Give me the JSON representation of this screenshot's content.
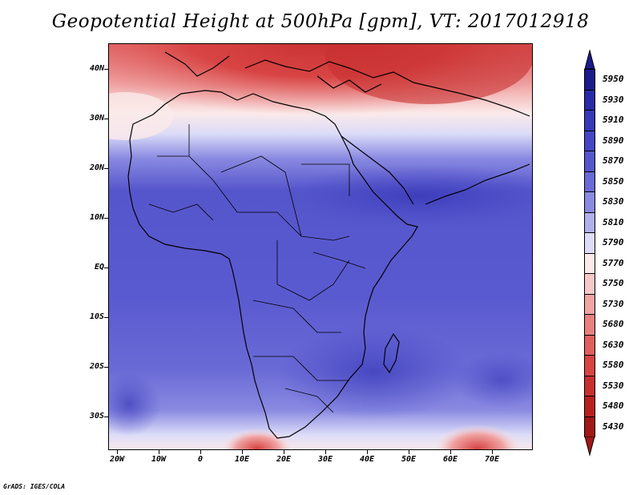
{
  "title": "Geopotential Height at 500hPa [gpm], VT: 2017012918",
  "footer": "GrADS: IGES/COLA",
  "axes": {
    "y_ticks": [
      "40N",
      "30N",
      "20N",
      "10N",
      "EQ",
      "10S",
      "20S",
      "30S"
    ],
    "x_ticks": [
      "20W",
      "10W",
      "0",
      "10E",
      "20E",
      "30E",
      "40E",
      "50E",
      "60E",
      "70E"
    ]
  },
  "colorbar": {
    "levels": [
      "5950",
      "5930",
      "5910",
      "5890",
      "5870",
      "5850",
      "5830",
      "5810",
      "5790",
      "5770",
      "5750",
      "5730",
      "5680",
      "5630",
      "5580",
      "5530",
      "5480",
      "5430"
    ],
    "colors": [
      "#1b1b8c",
      "#2a2aa6",
      "#3838b8",
      "#4646c4",
      "#5656cc",
      "#6a6ad6",
      "#8a8ae2",
      "#b0b0ee",
      "#dcdcf8",
      "#fbeaea",
      "#f6c8c8",
      "#f0a4a4",
      "#e88080",
      "#e06060",
      "#d84444",
      "#c83030",
      "#b82020",
      "#a01818"
    ]
  }
}
